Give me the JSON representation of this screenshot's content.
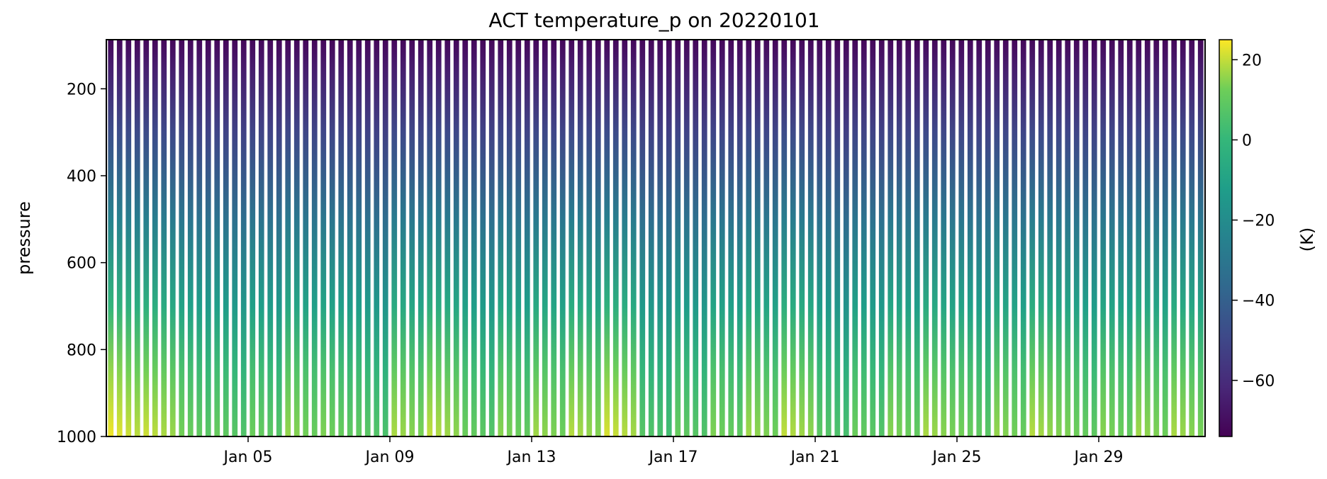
{
  "chart_data": {
    "type": "heatmap",
    "title": "ACT temperature_p on 20220101",
    "ylabel": "pressure",
    "xlabel": "",
    "colorbar_label": "(K)",
    "colormap": "viridis",
    "x_range": [
      "2022-01-01",
      "2022-01-31"
    ],
    "x_ticks": [
      "Jan 05",
      "Jan 09",
      "Jan 13",
      "Jan 17",
      "Jan 21",
      "Jan 25",
      "Jan 29"
    ],
    "x_tick_dates": [
      "2022-01-05",
      "2022-01-09",
      "2022-01-13",
      "2022-01-17",
      "2022-01-21",
      "2022-01-25",
      "2022-01-29"
    ],
    "y_ticks": [
      200,
      400,
      600,
      800,
      1000
    ],
    "ylim": [
      1000,
      87
    ],
    "y_inverted": true,
    "colorbar_ticks": [
      20,
      0,
      -20,
      -40,
      -60
    ],
    "color_range": [
      -74,
      25
    ],
    "soundings_per_day": 4,
    "surface_temperature_daily": [
      24,
      21,
      13,
      11,
      12,
      16,
      14,
      10,
      18,
      20,
      12,
      15,
      17,
      19,
      22,
      8,
      11,
      14,
      17,
      20,
      9,
      12,
      15,
      18,
      13,
      16,
      19,
      14,
      15,
      17,
      18
    ],
    "lapse_rate_note": "temperature decreases with height from surface (~1000) to about -70 at top (~87)"
  }
}
